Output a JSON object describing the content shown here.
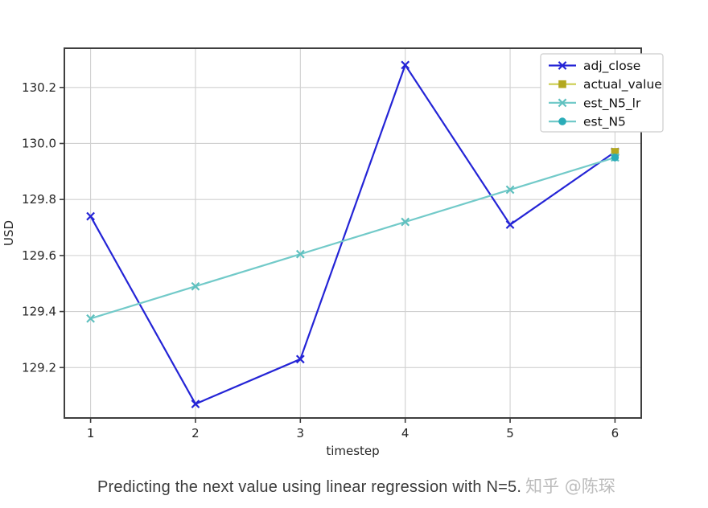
{
  "figure": {
    "caption": "Predicting the next value using linear regression with N=5.",
    "watermark": "知乎 @陈琛"
  },
  "chart_data": {
    "type": "line",
    "title": "",
    "xlabel": "timestep",
    "ylabel": "USD",
    "xlim": [
      0.75,
      6.25
    ],
    "ylim": [
      129.02,
      130.34
    ],
    "xticks": [
      1,
      2,
      3,
      4,
      5,
      6
    ],
    "yticks": [
      129.2,
      129.4,
      129.6,
      129.8,
      130.0,
      130.2
    ],
    "grid": true,
    "legend_position": "upper right",
    "colors": {
      "grid": "#d0d0d0",
      "spine": "#3f3f3f",
      "tick_label": "#262626",
      "legend_border": "#cccccc",
      "legend_text": "#111111"
    },
    "series": [
      {
        "name": "adj_close",
        "marker": "x",
        "line_color": "#2424d6",
        "marker_color": "#2424d6",
        "x": [
          1,
          2,
          3,
          4,
          5,
          6
        ],
        "y": [
          129.74,
          129.07,
          129.23,
          130.28,
          129.71,
          129.97
        ]
      },
      {
        "name": "actual_value",
        "marker": "square",
        "line_color": "#cbcd4e",
        "marker_color": "#b3a81f",
        "x": [
          6
        ],
        "y": [
          129.97
        ]
      },
      {
        "name": "est_N5_lr",
        "marker": "x",
        "line_color": "#72cac9",
        "marker_color": "#5fc0bf",
        "x": [
          1,
          2,
          3,
          4,
          5,
          6
        ],
        "y": [
          129.375,
          129.49,
          129.605,
          129.72,
          129.835,
          129.95
        ]
      },
      {
        "name": "est_N5",
        "marker": "circle",
        "line_color": "#72cac9",
        "marker_color": "#2aacb8",
        "x": [
          6
        ],
        "y": [
          129.95
        ]
      }
    ]
  }
}
